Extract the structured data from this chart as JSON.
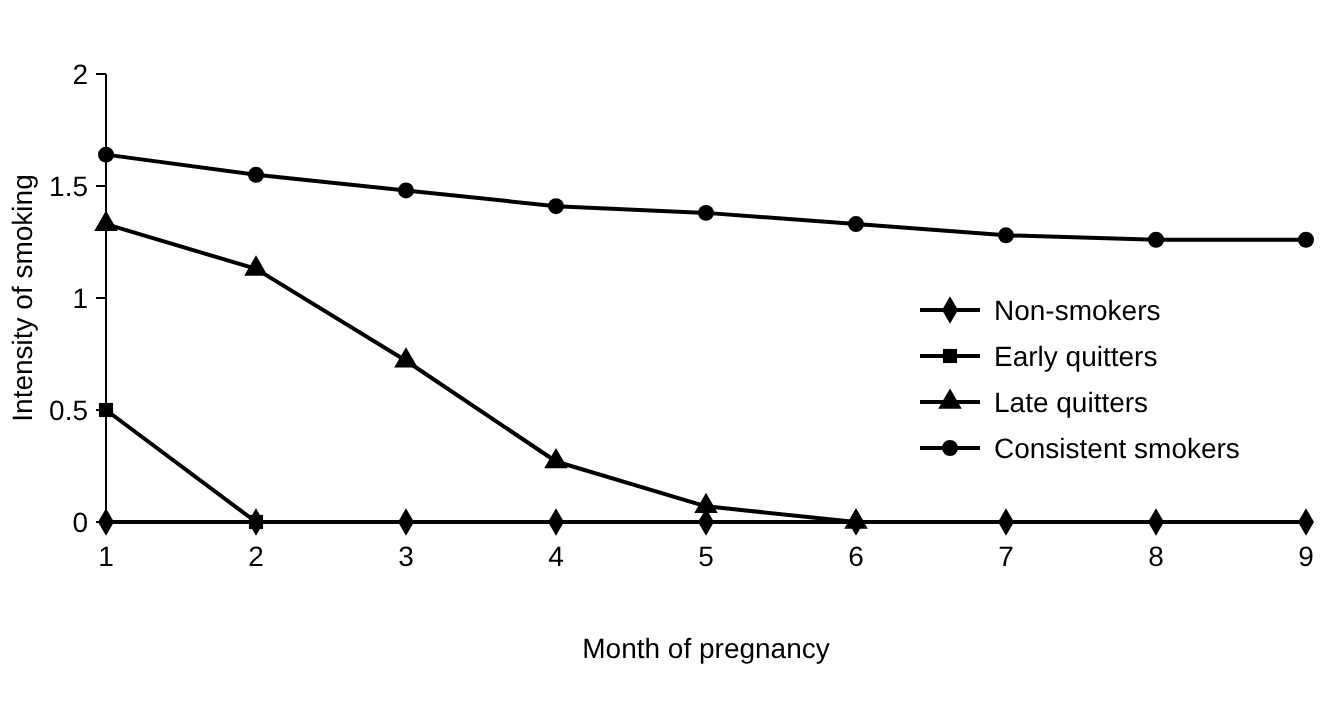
{
  "chart_data": {
    "type": "line",
    "xlabel": "Month of pregnancy",
    "ylabel": "Intensity of smoking",
    "x": [
      1,
      2,
      3,
      4,
      5,
      6,
      7,
      8,
      9
    ],
    "xlim": [
      1,
      9
    ],
    "xticks": [
      1,
      2,
      3,
      4,
      5,
      6,
      7,
      8,
      9
    ],
    "ylim": [
      0,
      2
    ],
    "yticks": [
      0,
      0.5,
      1,
      1.5,
      2
    ],
    "grid": false,
    "legend": "right",
    "line_style": "solid",
    "series": [
      {
        "name": "Non-smokers",
        "color": "#000000",
        "marker": "diamond",
        "values": [
          0,
          0,
          0,
          0,
          0,
          0,
          0,
          0,
          0
        ]
      },
      {
        "name": "Early quitters",
        "color": "#000000",
        "marker": "square",
        "values": [
          0.5,
          0,
          null,
          null,
          null,
          null,
          null,
          null,
          null
        ]
      },
      {
        "name": "Late quitters",
        "color": "#000000",
        "marker": "triangle",
        "values": [
          1.33,
          1.13,
          0.72,
          0.27,
          0.07,
          0,
          null,
          null,
          null
        ]
      },
      {
        "name": "Consistent smokers",
        "color": "#000000",
        "marker": "circle",
        "values": [
          1.64,
          1.55,
          1.48,
          1.41,
          1.38,
          1.33,
          1.28,
          1.26,
          1.26
        ]
      }
    ]
  }
}
